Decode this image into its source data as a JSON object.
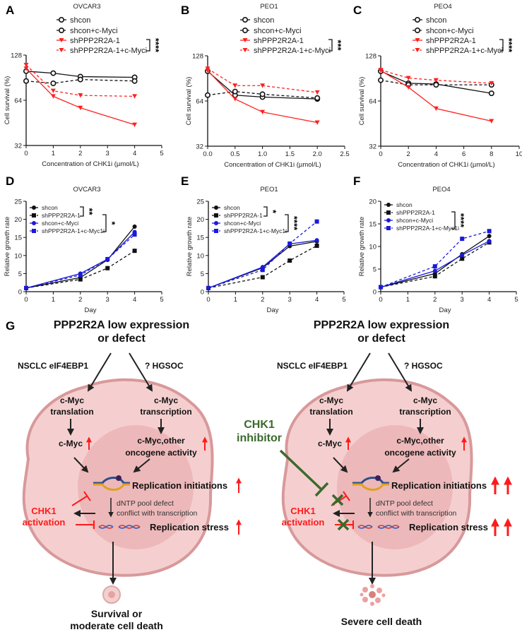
{
  "panel_letters": [
    "A",
    "B",
    "C",
    "D",
    "E",
    "F",
    "G"
  ],
  "chart_data": [
    {
      "panel": "A",
      "type": "line",
      "title": "OVCAR3",
      "xlabel": "Concentration of CHK1i  (µmol/L)",
      "ylabel": "Cell survival (%)",
      "yscale": "log2",
      "xlim": [
        0,
        5
      ],
      "ylim": [
        32,
        128
      ],
      "xticks": [
        0,
        1,
        2,
        3,
        4,
        5
      ],
      "xtick_labels": [
        "0",
        "1",
        "2",
        "3",
        "4",
        "5"
      ],
      "yticks": [
        32,
        64,
        128
      ],
      "ytick_labels": [
        "32",
        "64",
        "128"
      ],
      "x": [
        0,
        1,
        2,
        4
      ],
      "series": [
        {
          "name": "shcon",
          "color": "#111111",
          "dashed": false,
          "marker": "circle-open",
          "values": [
            100,
            97,
            92,
            91
          ]
        },
        {
          "name": "shcon+c-Myci",
          "color": "#111111",
          "dashed": true,
          "marker": "circle-open",
          "values": [
            86,
            83,
            88,
            86
          ]
        },
        {
          "name": "shPPP2R2A-1",
          "color": "#ff2020",
          "dashed": false,
          "marker": "triangle",
          "values": [
            104,
            68,
            57,
            44
          ]
        },
        {
          "name": "shPPP2R2A-1+c-Myci",
          "color": "#ff2020",
          "dashed": true,
          "marker": "triangle",
          "values": [
            110,
            74,
            69,
            68
          ]
        }
      ],
      "significance": [
        {
          "rows": [
            2,
            3
          ],
          "label": "****"
        }
      ]
    },
    {
      "panel": "B",
      "type": "line",
      "title": "PEO1",
      "xlabel": "Concentration of CHK1i  (µmol/L)",
      "ylabel": "Cell survival (%)",
      "yscale": "log2",
      "xlim": [
        0,
        2.5
      ],
      "ylim": [
        32,
        128
      ],
      "xticks": [
        0,
        0.5,
        1,
        1.5,
        2,
        2.5
      ],
      "xtick_labels": [
        "0.0",
        "0.5",
        "1.0",
        "1.5",
        "2.0",
        "2.5"
      ],
      "yticks": [
        32,
        64,
        128
      ],
      "ytick_labels": [
        "32",
        "64",
        "128"
      ],
      "x": [
        0,
        0.5,
        1,
        2
      ],
      "series": [
        {
          "name": "shcon",
          "color": "#111111",
          "dashed": false,
          "marker": "circle-open",
          "values": [
            101,
            70,
            68,
            66
          ]
        },
        {
          "name": "shcon+c-Myci",
          "color": "#111111",
          "dashed": true,
          "marker": "circle-open",
          "values": [
            70,
            74,
            71,
            67
          ]
        },
        {
          "name": "shPPP2R2A-1",
          "color": "#ff2020",
          "dashed": false,
          "marker": "triangle",
          "values": [
            102,
            66,
            54,
            46
          ]
        },
        {
          "name": "shPPP2R2A-1+c-Myci",
          "color": "#ff2020",
          "dashed": true,
          "marker": "triangle",
          "values": [
            105,
            81,
            81,
            73
          ]
        }
      ],
      "significance": [
        {
          "rows": [
            2,
            3
          ],
          "label": "***"
        }
      ]
    },
    {
      "panel": "C",
      "type": "line",
      "title": "PEO4",
      "xlabel": "Concentration of CHK1i  (µmol/L)",
      "ylabel": "Cell survival (%)",
      "yscale": "log2",
      "xlim": [
        0,
        10
      ],
      "ylim": [
        32,
        128
      ],
      "xticks": [
        0,
        2,
        4,
        6,
        8,
        10
      ],
      "xtick_labels": [
        "0",
        "2",
        "4",
        "6",
        "8",
        "10"
      ],
      "yticks": [
        32,
        64,
        128
      ],
      "ytick_labels": [
        "32",
        "64",
        "128"
      ],
      "x": [
        0,
        2,
        4,
        8
      ],
      "series": [
        {
          "name": "shcon",
          "color": "#111111",
          "dashed": false,
          "marker": "circle-open",
          "values": [
            101,
            84,
            83,
            72
          ]
        },
        {
          "name": "shcon+c-Myci",
          "color": "#111111",
          "dashed": true,
          "marker": "circle-open",
          "values": [
            88,
            82,
            82,
            82
          ]
        },
        {
          "name": "shPPP2R2A-1",
          "color": "#ff2020",
          "dashed": false,
          "marker": "triangle",
          "values": [
            102,
            79,
            57,
            47
          ]
        },
        {
          "name": "shPPP2R2A-1+c-Myci",
          "color": "#ff2020",
          "dashed": true,
          "marker": "triangle",
          "values": [
            103,
            91,
            88,
            84
          ]
        }
      ],
      "significance": [
        {
          "rows": [
            2,
            3
          ],
          "label": "****"
        }
      ]
    },
    {
      "panel": "D",
      "type": "line",
      "title": "OVCAR3",
      "xlabel": "Day",
      "ylabel": "Relative growth rate",
      "yscale": "linear",
      "xlim": [
        0,
        5
      ],
      "ylim": [
        0,
        25
      ],
      "xticks": [
        0,
        1,
        2,
        3,
        4,
        5
      ],
      "xtick_labels": [
        "0",
        "1",
        "2",
        "3",
        "4",
        "5"
      ],
      "yticks": [
        0,
        5,
        10,
        15,
        20,
        25
      ],
      "ytick_labels": [
        "0",
        "5",
        "10",
        "15",
        "20",
        "25"
      ],
      "x": [
        0,
        2,
        3,
        4
      ],
      "series": [
        {
          "name": "shcon",
          "color": "#111111",
          "dashed": false,
          "marker": "circle",
          "values": [
            1,
            3.9,
            8.8,
            18.0
          ]
        },
        {
          "name": "shPPP2R2A-1",
          "color": "#111111",
          "dashed": true,
          "marker": "square",
          "values": [
            1,
            3.4,
            6.5,
            11.3
          ]
        },
        {
          "name": "shcon+c-Myci",
          "color": "#1a1adb",
          "dashed": false,
          "marker": "circle",
          "values": [
            1,
            5.0,
            9.0,
            16.5
          ]
        },
        {
          "name": "shPPP2R2A-1+c-Myc1i",
          "color": "#1a1adb",
          "dashed": true,
          "marker": "square",
          "values": [
            1,
            4.6,
            9.0,
            15.8
          ]
        }
      ],
      "significance": [
        {
          "rows": [
            0,
            1
          ],
          "label": "**"
        },
        {
          "rows": [
            1,
            3
          ],
          "label": "*"
        }
      ]
    },
    {
      "panel": "E",
      "type": "line",
      "title": "PEO1",
      "xlabel": "Day",
      "ylabel": "Relative growth rate",
      "yscale": "linear",
      "xlim": [
        0,
        5
      ],
      "ylim": [
        0,
        25
      ],
      "xticks": [
        0,
        1,
        2,
        3,
        4,
        5
      ],
      "xtick_labels": [
        "0",
        "1",
        "2",
        "3",
        "4",
        "5"
      ],
      "yticks": [
        0,
        5,
        10,
        15,
        20,
        25
      ],
      "ytick_labels": [
        "0",
        "5",
        "10",
        "15",
        "20",
        "25"
      ],
      "x": [
        0,
        2,
        3,
        4
      ],
      "series": [
        {
          "name": "shcon",
          "color": "#111111",
          "dashed": false,
          "marker": "circle",
          "values": [
            1,
            6.6,
            12.6,
            13.9
          ]
        },
        {
          "name": "shPPP2R2A-1",
          "color": "#111111",
          "dashed": true,
          "marker": "square",
          "values": [
            1,
            4.0,
            8.6,
            12.7
          ]
        },
        {
          "name": "shcon+c-Myci",
          "color": "#1a1adb",
          "dashed": false,
          "marker": "circle",
          "values": [
            1,
            6.8,
            13.2,
            14.2
          ]
        },
        {
          "name": "shPPP2R2A-1+c-Myc1i",
          "color": "#1a1adb",
          "dashed": true,
          "marker": "square",
          "values": [
            1,
            6.0,
            13.3,
            19.4
          ]
        }
      ],
      "significance": [
        {
          "rows": [
            0,
            1
          ],
          "label": "*"
        },
        {
          "rows": [
            1,
            3
          ],
          "label": "****"
        }
      ]
    },
    {
      "panel": "F",
      "type": "line",
      "title": "PEO4",
      "xlabel": "Day",
      "ylabel": "Relative growth rate",
      "yscale": "linear",
      "xlim": [
        0,
        5
      ],
      "ylim": [
        0,
        20
      ],
      "xticks": [
        0,
        1,
        2,
        3,
        4,
        5
      ],
      "xtick_labels": [
        "0",
        "1",
        "2",
        "3",
        "4",
        "5"
      ],
      "yticks": [
        0,
        5,
        10,
        15,
        20
      ],
      "ytick_labels": [
        "0",
        "5",
        "10",
        "15",
        "20"
      ],
      "x": [
        0,
        2,
        3,
        4
      ],
      "series": [
        {
          "name": "shcon",
          "color": "#111111",
          "dashed": false,
          "marker": "circle",
          "values": [
            1,
            4.0,
            8.3,
            12.3
          ]
        },
        {
          "name": "shPPP2R2A-1",
          "color": "#111111",
          "dashed": true,
          "marker": "square",
          "values": [
            1,
            3.4,
            7.3,
            10.9
          ]
        },
        {
          "name": "shcon+c-Myci",
          "color": "#1a1adb",
          "dashed": false,
          "marker": "circle",
          "values": [
            1,
            4.6,
            8.1,
            11.2
          ]
        },
        {
          "name": "shPPP2R2A-1+c-Myc1i",
          "color": "#1a1adb",
          "dashed": true,
          "marker": "square",
          "values": [
            1,
            5.6,
            11.7,
            13.4
          ]
        }
      ],
      "significance": [
        {
          "rows": [
            1,
            3
          ],
          "label": "****"
        }
      ]
    }
  ],
  "diagram": {
    "left": {
      "title_1": "PPP2R2A low expression",
      "title_2": "or defect",
      "branch_left": "NSCLC  eIF4EBP1",
      "branch_right": "?  HGSOC",
      "translation_1": "c-Myc",
      "translation_2": "translation",
      "transcription_1": "c-Myc",
      "transcription_2": "transcription",
      "cmyc": "c-Myc",
      "oncogene_1": "c-Myc,other",
      "oncogene_2": "oncogene activity",
      "replication_initiations": "Replication initiations",
      "dntp_1": "dNTP pool defect",
      "dntp_2": "conflict with transcription",
      "chk1_1": "CHK1",
      "chk1_2": "activation",
      "replication_stress": "Replication stress",
      "outcome_1": "Survival or",
      "outcome_2": "moderate cell death"
    },
    "right": {
      "title_1": "PPP2R2A low expression",
      "title_2": "or defect",
      "branch_left": "NSCLC  eIF4EBP1",
      "branch_right": "?  HGSOC",
      "translation_1": "c-Myc",
      "translation_2": "translation",
      "transcription_1": "c-Myc",
      "transcription_2": "transcription",
      "cmyc": "c-Myc",
      "oncogene_1": "c-Myc,other",
      "oncogene_2": "oncogene activity",
      "replication_initiations": "Replication initiations",
      "dntp_1": "dNTP pool defect",
      "dntp_2": "conflict with transcription",
      "chk1_1": "CHK1",
      "chk1_2": "activation",
      "replication_stress": "Replication stress",
      "inhibitor_1": "CHK1",
      "inhibitor_2": "inhibitor",
      "outcome_1": "Severe cell death"
    },
    "colors": {
      "up_arrow": "#ff1a1a",
      "chk1": "#ff1a1a",
      "inhibitor": "#3b6a2c",
      "cell": "#f5cfcf",
      "cell_edge": "#d8999b",
      "nucleus": "#e8aaab"
    }
  }
}
